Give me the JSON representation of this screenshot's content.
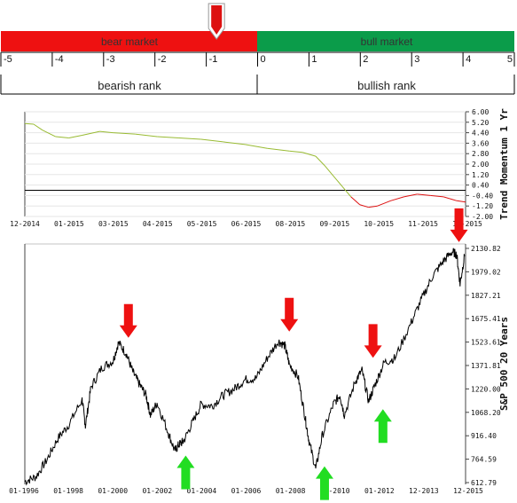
{
  "gauge": {
    "bear_label": "bear market",
    "bull_label": "bull market",
    "bear_color": "#ee1111",
    "bull_color": "#0b9c4a",
    "scale_ticks": [
      "-5",
      "-4",
      "-3",
      "-2",
      "-1",
      "0",
      "1",
      "2",
      "3",
      "4",
      "5"
    ],
    "bearish_label": "bearish rank",
    "bullish_label": "bullish rank",
    "indicator_value": -0.8,
    "indicator_color": "#dd1111"
  },
  "chart_data": [
    {
      "type": "line",
      "ylabel": "Trend Momentum 1 Yr",
      "ylim": [
        -2.0,
        6.0
      ],
      "y_ticks": [
        "6.00",
        "5.20",
        "4.40",
        "3.60",
        "2.80",
        "2.00",
        "1.20",
        "0.40",
        "-0.40",
        "-1.20",
        "-2.00"
      ],
      "x_ticks": [
        "12-2014",
        "01-2015",
        "03-2015",
        "04-2015",
        "05-2015",
        "06-2015",
        "08-2015",
        "09-2015",
        "10-2015",
        "11-2015",
        "12-2015"
      ],
      "reference_line": 0.0,
      "grid": true,
      "positive_color": "#99bb33",
      "negative_color": "#dd1111",
      "series": [
        {
          "x": [
            0,
            0.02,
            0.04,
            0.07,
            0.1,
            0.13,
            0.17,
            0.2,
            0.25,
            0.3,
            0.35,
            0.4,
            0.45,
            0.5,
            0.55,
            0.6,
            0.63,
            0.66,
            0.68,
            0.7,
            0.72,
            0.74,
            0.76,
            0.78,
            0.8,
            0.83,
            0.86,
            0.89,
            0.92,
            0.95,
            0.98,
            1.0
          ],
          "values": [
            5.1,
            5.05,
            4.6,
            4.1,
            4.0,
            4.2,
            4.5,
            4.4,
            4.3,
            4.1,
            4.0,
            3.9,
            3.7,
            3.5,
            3.2,
            3.0,
            2.9,
            2.6,
            1.9,
            1.1,
            0.3,
            -0.5,
            -1.1,
            -1.3,
            -1.2,
            -0.8,
            -0.5,
            -0.3,
            -0.4,
            -0.5,
            -0.8,
            -0.9
          ]
        }
      ]
    },
    {
      "type": "line",
      "ylabel": "S&P 500 20 Years",
      "ylim": [
        612.79,
        2130.82
      ],
      "y_ticks": [
        "2130.82",
        "1979.02",
        "1827.21",
        "1675.41",
        "1523.61",
        "1371.81",
        "1220.00",
        "1068.20",
        "916.40",
        "764.59",
        "612.79"
      ],
      "x_ticks": [
        "01-1996",
        "01-1998",
        "01-2000",
        "01-2002",
        "01-2004",
        "01-2006",
        "01-2008",
        "01-2010",
        "01-2012",
        "12-2013",
        "12-2015"
      ],
      "series": [
        {
          "x": [
            1996.0,
            1996.5,
            1997.0,
            1997.5,
            1998.0,
            1998.6,
            1998.75,
            1999.0,
            1999.5,
            2000.0,
            2000.25,
            2000.6,
            2000.9,
            2001.2,
            2001.5,
            2001.7,
            2002.0,
            2002.5,
            2002.8,
            2003.0,
            2003.2,
            2003.6,
            2004.0,
            2004.5,
            2005.0,
            2005.5,
            2006.0,
            2006.5,
            2007.0,
            2007.5,
            2007.8,
            2008.0,
            2008.4,
            2008.7,
            2008.9,
            2009.2,
            2009.5,
            2010.0,
            2010.3,
            2010.5,
            2011.0,
            2011.3,
            2011.6,
            2011.9,
            2012.3,
            2012.8,
            2013.5,
            2014.0,
            2014.5,
            2015.0,
            2015.4,
            2015.6,
            2015.75,
            2015.95
          ],
          "values": [
            620,
            650,
            760,
            900,
            990,
            1150,
            980,
            1230,
            1360,
            1400,
            1520,
            1450,
            1330,
            1250,
            1180,
            1050,
            1130,
            940,
            820,
            860,
            880,
            1000,
            1120,
            1110,
            1180,
            1220,
            1280,
            1290,
            1420,
            1530,
            1500,
            1380,
            1300,
            1050,
            880,
            700,
            920,
            1120,
            1180,
            1050,
            1270,
            1340,
            1140,
            1250,
            1390,
            1420,
            1640,
            1800,
            1950,
            2050,
            2110,
            2090,
            1900,
            2080
          ]
        }
      ],
      "markers": [
        {
          "date": 2000.7,
          "value": 1540,
          "direction": "down",
          "color": "#ee1111"
        },
        {
          "date": 2003.3,
          "value": 800,
          "direction": "up",
          "color": "#22dd22"
        },
        {
          "date": 2008.0,
          "value": 1580,
          "direction": "down",
          "color": "#ee1111"
        },
        {
          "date": 2009.6,
          "value": 730,
          "direction": "up",
          "color": "#22dd22"
        },
        {
          "date": 2011.8,
          "value": 1410,
          "direction": "down",
          "color": "#ee1111"
        },
        {
          "date": 2012.25,
          "value": 1100,
          "direction": "up",
          "color": "#22dd22"
        },
        {
          "date": 2015.7,
          "value": 2160,
          "direction": "down",
          "color": "#ee1111"
        }
      ]
    }
  ]
}
